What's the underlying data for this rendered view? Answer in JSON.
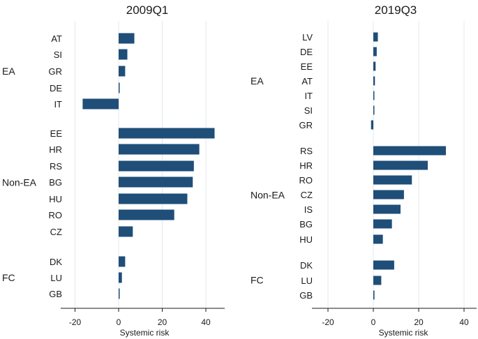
{
  "chart_data": [
    {
      "type": "bar",
      "orientation": "horizontal",
      "title": "2009Q1",
      "xlabel": "Systemic risk",
      "xlim": [
        -22,
        48
      ],
      "xticks": [
        -20,
        0,
        20,
        40
      ],
      "grid": "vertical",
      "groups": [
        {
          "label": "EA",
          "categories": [
            "AT",
            "SI",
            "GR",
            "DE",
            "IT"
          ],
          "values": [
            7.2,
            4.0,
            3.0,
            0.4,
            -16.5
          ]
        },
        {
          "label": "Non-EA",
          "categories": [
            "EE",
            "HR",
            "RS",
            "BG",
            "HU",
            "RO",
            "CZ"
          ],
          "values": [
            44.0,
            37.0,
            34.5,
            34.0,
            31.5,
            25.5,
            6.5
          ]
        },
        {
          "label": "FC",
          "categories": [
            "DK",
            "LU",
            "GB"
          ],
          "values": [
            3.0,
            1.5,
            0.3
          ]
        }
      ]
    },
    {
      "type": "bar",
      "orientation": "horizontal",
      "title": "2019Q3",
      "xlabel": "Systemic risk",
      "xlim": [
        -22,
        44
      ],
      "xticks": [
        -20,
        0,
        20,
        40
      ],
      "grid": "vertical",
      "groups": [
        {
          "label": "EA",
          "categories": [
            "LV",
            "DE",
            "EE",
            "AT",
            "IT",
            "SI",
            "GR"
          ],
          "values": [
            2.0,
            1.5,
            1.0,
            0.7,
            0.3,
            0.2,
            -1.0
          ]
        },
        {
          "label": "Non-EA",
          "categories": [
            "RS",
            "HR",
            "RO",
            "CZ",
            "IS",
            "BG",
            "HU"
          ],
          "values": [
            32.0,
            24.0,
            17.0,
            13.5,
            12.0,
            8.2,
            4.2
          ]
        },
        {
          "label": "FC",
          "categories": [
            "DK",
            "LU",
            "GB"
          ],
          "values": [
            9.2,
            3.5,
            0.5
          ]
        }
      ]
    }
  ],
  "colors": {
    "bar": "#1f4e79",
    "grid": "#e3e7ec",
    "axis": "#1a1a1a",
    "text": "#1a1a1a"
  }
}
